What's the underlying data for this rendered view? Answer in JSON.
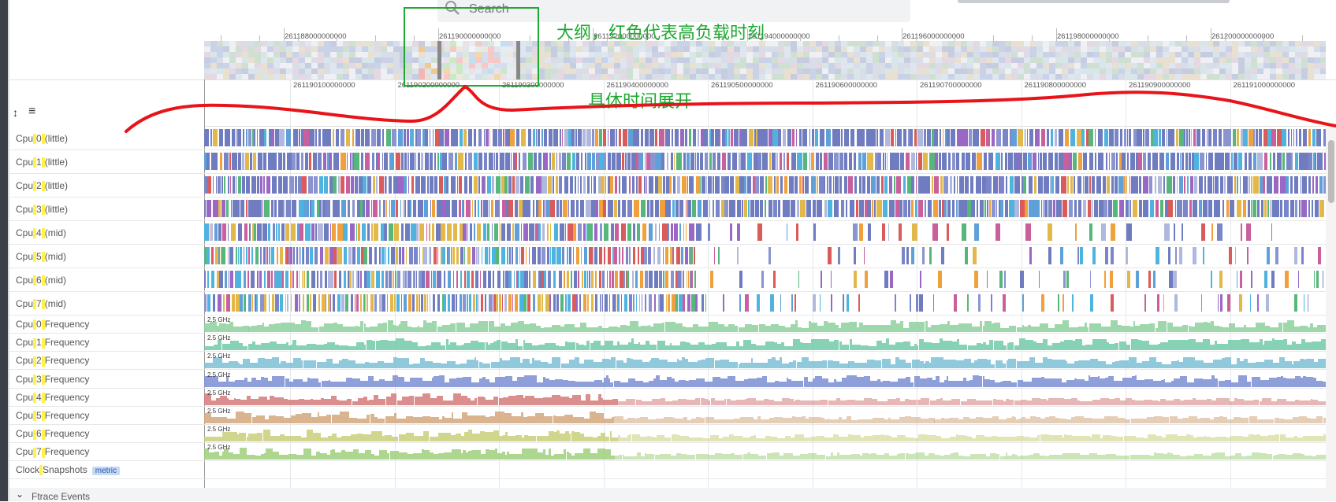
{
  "search": {
    "placeholder": "Search",
    "icon": "search-icon"
  },
  "overview_ticks": [
    "261188000000000",
    "261190000000000",
    "261192000000000",
    "261194000000000",
    "261196000000000",
    "261198000000000",
    "261200000000000"
  ],
  "detail_ticks": [
    "261190100000000",
    "261190200000000",
    "261190300000000",
    "261190400000000",
    "261190500000000",
    "261190600000000",
    "261190700000000",
    "261190800000000",
    "261190900000000",
    "261191000000000"
  ],
  "tools": {
    "collapse_icon": "↕",
    "menu_icon": "≡"
  },
  "tracks": {
    "cpu": [
      {
        "label": "Cpu 0 (little)"
      },
      {
        "label": "Cpu 1 (little)"
      },
      {
        "label": "Cpu 2 (little)"
      },
      {
        "label": "Cpu 3 (little)"
      },
      {
        "label": "Cpu 4 (mid)"
      },
      {
        "label": "Cpu 5 (mid)"
      },
      {
        "label": "Cpu 6 (mid)"
      },
      {
        "label": "Cpu 7 (mid)"
      }
    ],
    "freq": [
      {
        "label": "Cpu 0 Frequency",
        "max": "2.5 GHz",
        "color": "#8fd19e"
      },
      {
        "label": "Cpu 1 Frequency",
        "max": "2.5 GHz",
        "color": "#73c9a8"
      },
      {
        "label": "Cpu 2 Frequency",
        "max": "2.5 GHz",
        "color": "#7ec0d6"
      },
      {
        "label": "Cpu 3 Frequency",
        "max": "2.5 GHz",
        "color": "#7b8fd4"
      },
      {
        "label": "Cpu 4 Frequency",
        "max": "2.5 GHz",
        "color": "#d57b7b"
      },
      {
        "label": "Cpu 5 Frequency",
        "max": "2.5 GHz",
        "color": "#d3a77b"
      },
      {
        "label": "Cpu 6 Frequency",
        "max": "2.5 GHz",
        "color": "#c9d07b"
      },
      {
        "label": "Cpu 7 Frequency",
        "max": "2.5 GHz",
        "color": "#9fd07b"
      }
    ],
    "clock": {
      "label": "Clock Snapshots",
      "badge": "metric"
    },
    "ftrace": {
      "label": "Ftrace Events",
      "chevron": "⌄"
    }
  },
  "annotations": {
    "overview_note": "大纲，红色代表高负载时刻",
    "detail_note": "具体时间展开"
  },
  "colors": {
    "annotation_green": "#1fa832",
    "annotation_red": "#e8141a"
  }
}
